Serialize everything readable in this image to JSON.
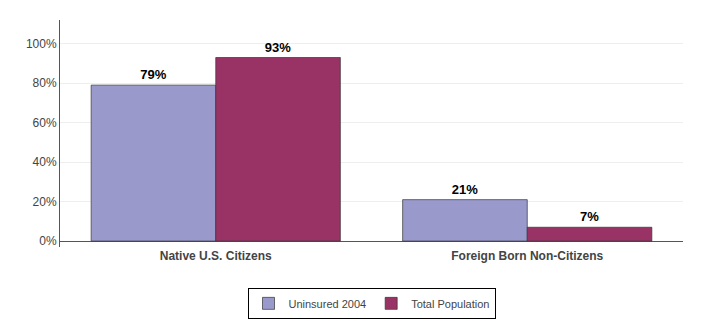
{
  "chart_data": {
    "type": "bar",
    "categories": [
      "Native U.S. Citizens",
      "Foreign Born Non-Citizens"
    ],
    "series": [
      {
        "name": "Uninsured 2004",
        "color": "#9999cc",
        "values": [
          79,
          21
        ],
        "value_labels": [
          "79%",
          "21%"
        ]
      },
      {
        "name": "Total Population",
        "color": "#993366",
        "values": [
          93,
          7
        ],
        "value_labels": [
          "93%",
          "7%"
        ]
      }
    ],
    "ylim": [
      -3,
      112
    ],
    "yticks": [
      {
        "value": 0,
        "label": "0%"
      },
      {
        "value": 20,
        "label": "20%"
      },
      {
        "value": 40,
        "label": "40%"
      },
      {
        "value": 60,
        "label": "60%"
      },
      {
        "value": 80,
        "label": "80%"
      },
      {
        "value": 100,
        "label": "100%"
      }
    ],
    "grid": true,
    "data_labels": true,
    "legend": "bottom"
  }
}
